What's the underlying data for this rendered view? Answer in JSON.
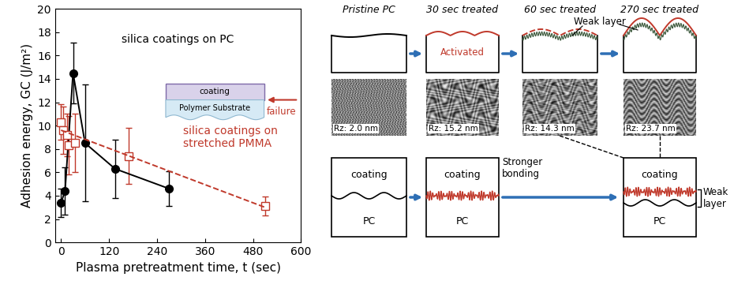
{
  "chart_data": {
    "type": "line",
    "xlabel": "Plasma pretreatment time, t (sec)",
    "ylabel": "Adhesion energy, GC (J/m²)",
    "xlim": [
      -15,
      600
    ],
    "xticks": [
      0,
      120,
      240,
      360,
      480,
      600
    ],
    "ylim": [
      0,
      20
    ],
    "yticks": [
      0,
      2,
      4,
      6,
      8,
      10,
      12,
      14,
      16,
      18,
      20
    ],
    "series": [
      {
        "name": "silica coatings on PC",
        "type": "line",
        "color": "#000000",
        "marker": "circle",
        "line_style": "solid",
        "x": [
          0,
          10,
          30,
          60,
          135,
          270
        ],
        "values": [
          3.4,
          4.4,
          14.5,
          8.5,
          6.3,
          4.6
        ],
        "errors": [
          1.2,
          2.0,
          2.6,
          5.0,
          2.5,
          1.5
        ]
      },
      {
        "name": "silica coatings on\nstretched PMMA",
        "type": "scatter",
        "color": "#c0392b",
        "marker": "open_square",
        "x": [
          0,
          5,
          15,
          20,
          35,
          170,
          510
        ],
        "values": [
          10.3,
          9.6,
          9.2,
          8.3,
          8.5,
          7.4,
          3.1
        ],
        "errors": [
          1.5,
          2.0,
          1.8,
          2.5,
          2.5,
          2.4,
          0.8
        ]
      },
      {
        "type": "line",
        "color": "#c0392b",
        "line_style": "dashed",
        "x": [
          0,
          510
        ],
        "values": [
          9.6,
          3.0
        ]
      }
    ],
    "inset": {
      "coating": "coating",
      "substrate": "Polymer Substrate",
      "failure": "failure"
    }
  },
  "diagram": {
    "stages": [
      {
        "label": "Pristine PC",
        "image_label": "Rz: 2.0 nm"
      },
      {
        "label": "30 sec treated",
        "image_label": "Rz: 15.2 nm",
        "note": "Activated"
      },
      {
        "label": "60 sec treated",
        "image_label": "Rz: 14.3 nm"
      },
      {
        "label": "270 sec treated",
        "image_label": "Rz: 23.7 nm"
      }
    ],
    "weak_layer_label": "Weak layer",
    "interfaces": [
      {
        "coating": "coating",
        "substrate": "PC"
      },
      {
        "coating": "coating",
        "substrate": "PC",
        "note": "Stronger\nbonding"
      },
      {
        "coating": "coating",
        "substrate": "PC",
        "note": "Weak\nlayer"
      }
    ]
  }
}
